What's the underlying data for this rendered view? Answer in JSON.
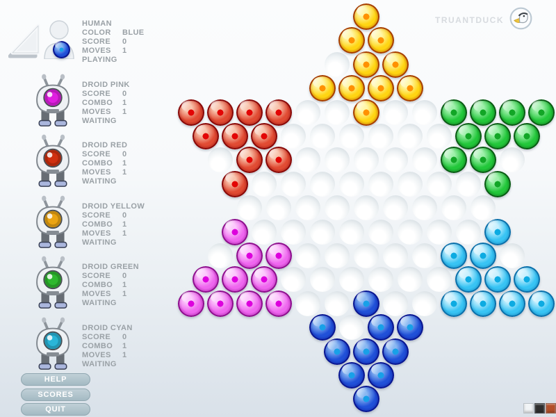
{
  "brand": {
    "name": "TRUANTDUCK",
    "logo": "duck-icon"
  },
  "players": [
    {
      "id": "human",
      "name": "HUMAN",
      "stats": [
        [
          "COLOR",
          "BLUE"
        ],
        [
          "SCORE",
          "0"
        ],
        [
          "MOVES",
          "1"
        ]
      ],
      "status": "PLAYING",
      "color_key": "blue"
    },
    {
      "id": "droid-pink",
      "name": "DROID PINK",
      "stats": [
        [
          "SCORE",
          "0"
        ],
        [
          "COMBO",
          "1"
        ],
        [
          "MOVES",
          "1"
        ]
      ],
      "status": "WAITING",
      "color_key": "magenta",
      "eye": "#e01fe0"
    },
    {
      "id": "droid-red",
      "name": "DROID RED",
      "stats": [
        [
          "SCORE",
          "0"
        ],
        [
          "COMBO",
          "1"
        ],
        [
          "MOVES",
          "1"
        ]
      ],
      "status": "WAITING",
      "color_key": "red",
      "eye": "#d03010"
    },
    {
      "id": "droid-yellow",
      "name": "DROID YELLOW",
      "stats": [
        [
          "SCORE",
          "0"
        ],
        [
          "COMBO",
          "1"
        ],
        [
          "MOVES",
          "1"
        ]
      ],
      "status": "WAITING",
      "color_key": "yellow",
      "eye": "#eba412"
    },
    {
      "id": "droid-green",
      "name": "DROID GREEN",
      "stats": [
        [
          "SCORE",
          "0"
        ],
        [
          "COMBO",
          "1"
        ],
        [
          "MOVES",
          "1"
        ]
      ],
      "status": "WAITING",
      "color_key": "green",
      "eye": "#2eb82e"
    },
    {
      "id": "droid-cyan",
      "name": "DROID CYAN",
      "stats": [
        [
          "SCORE",
          "0"
        ],
        [
          "COMBO",
          "1"
        ],
        [
          "MOVES",
          "1"
        ]
      ],
      "status": "WAITING",
      "color_key": "cyan",
      "eye": "#2ab5d8"
    }
  ],
  "buttons": [
    {
      "label": "HELP"
    },
    {
      "label": "SCORES"
    },
    {
      "label": "QUIT"
    }
  ],
  "marble_palettes": {
    "yellow": {
      "rim": "#a63c00",
      "body": "#ffd512",
      "light": "#fff6a8",
      "core": "#ff9100"
    },
    "red": {
      "rim": "#870808",
      "body": "#e14b33",
      "light": "#f8c3ac",
      "core": "#e30505"
    },
    "green": {
      "rim": "#0a5a14",
      "body": "#22c73a",
      "light": "#9ff0ab",
      "core": "#12a626"
    },
    "magenta": {
      "rim": "#8c0e8c",
      "body": "#ef66ef",
      "light": "#fcc8fc",
      "core": "#dd00dd"
    },
    "cyan": {
      "rim": "#0b6fa9",
      "body": "#38c4f4",
      "light": "#c8f0fe",
      "core": "#0cabe2"
    },
    "blue": {
      "rim": "#0a1690",
      "body": "#2050d8",
      "light": "#8ab8f2",
      "core": "#18a0e8"
    }
  },
  "board": {
    "row_counts": [
      1,
      2,
      3,
      4,
      13,
      12,
      11,
      10,
      9,
      10,
      11,
      12,
      13,
      4,
      3,
      2,
      1
    ],
    "marbles": {
      "yellow": [
        [
          1,
          0
        ],
        [
          2,
          0
        ],
        [
          2,
          1
        ],
        [
          3,
          1
        ],
        [
          3,
          2
        ],
        [
          4,
          0
        ],
        [
          4,
          1
        ],
        [
          4,
          2
        ],
        [
          4,
          3
        ],
        [
          5,
          6
        ]
      ],
      "red": [
        [
          5,
          0
        ],
        [
          5,
          1
        ],
        [
          5,
          2
        ],
        [
          5,
          3
        ],
        [
          6,
          0
        ],
        [
          6,
          1
        ],
        [
          6,
          2
        ],
        [
          7,
          1
        ],
        [
          7,
          2
        ],
        [
          8,
          0
        ]
      ],
      "green": [
        [
          5,
          9
        ],
        [
          5,
          10
        ],
        [
          5,
          11
        ],
        [
          5,
          12
        ],
        [
          6,
          9
        ],
        [
          6,
          10
        ],
        [
          6,
          11
        ],
        [
          7,
          8
        ],
        [
          7,
          9
        ],
        [
          8,
          9
        ]
      ],
      "magenta": [
        [
          10,
          0
        ],
        [
          11,
          1
        ],
        [
          11,
          2
        ],
        [
          12,
          0
        ],
        [
          12,
          1
        ],
        [
          12,
          2
        ],
        [
          13,
          0
        ],
        [
          13,
          1
        ],
        [
          13,
          2
        ],
        [
          13,
          3
        ]
      ],
      "cyan": [
        [
          10,
          9
        ],
        [
          11,
          8
        ],
        [
          11,
          9
        ],
        [
          12,
          9
        ],
        [
          12,
          10
        ],
        [
          12,
          11
        ],
        [
          13,
          9
        ],
        [
          13,
          10
        ],
        [
          13,
          11
        ],
        [
          13,
          12
        ]
      ],
      "blue": [
        [
          13,
          6
        ],
        [
          14,
          0
        ],
        [
          14,
          2
        ],
        [
          14,
          3
        ],
        [
          15,
          0
        ],
        [
          15,
          1
        ],
        [
          15,
          2
        ],
        [
          16,
          0
        ],
        [
          16,
          1
        ],
        [
          17,
          0
        ]
      ]
    }
  },
  "theme_swatches": [
    {
      "name": "light",
      "color": "#f1f4f6"
    },
    {
      "name": "dark",
      "color": "#2e2e2e"
    },
    {
      "name": "orange",
      "color": "#b5502a"
    }
  ]
}
